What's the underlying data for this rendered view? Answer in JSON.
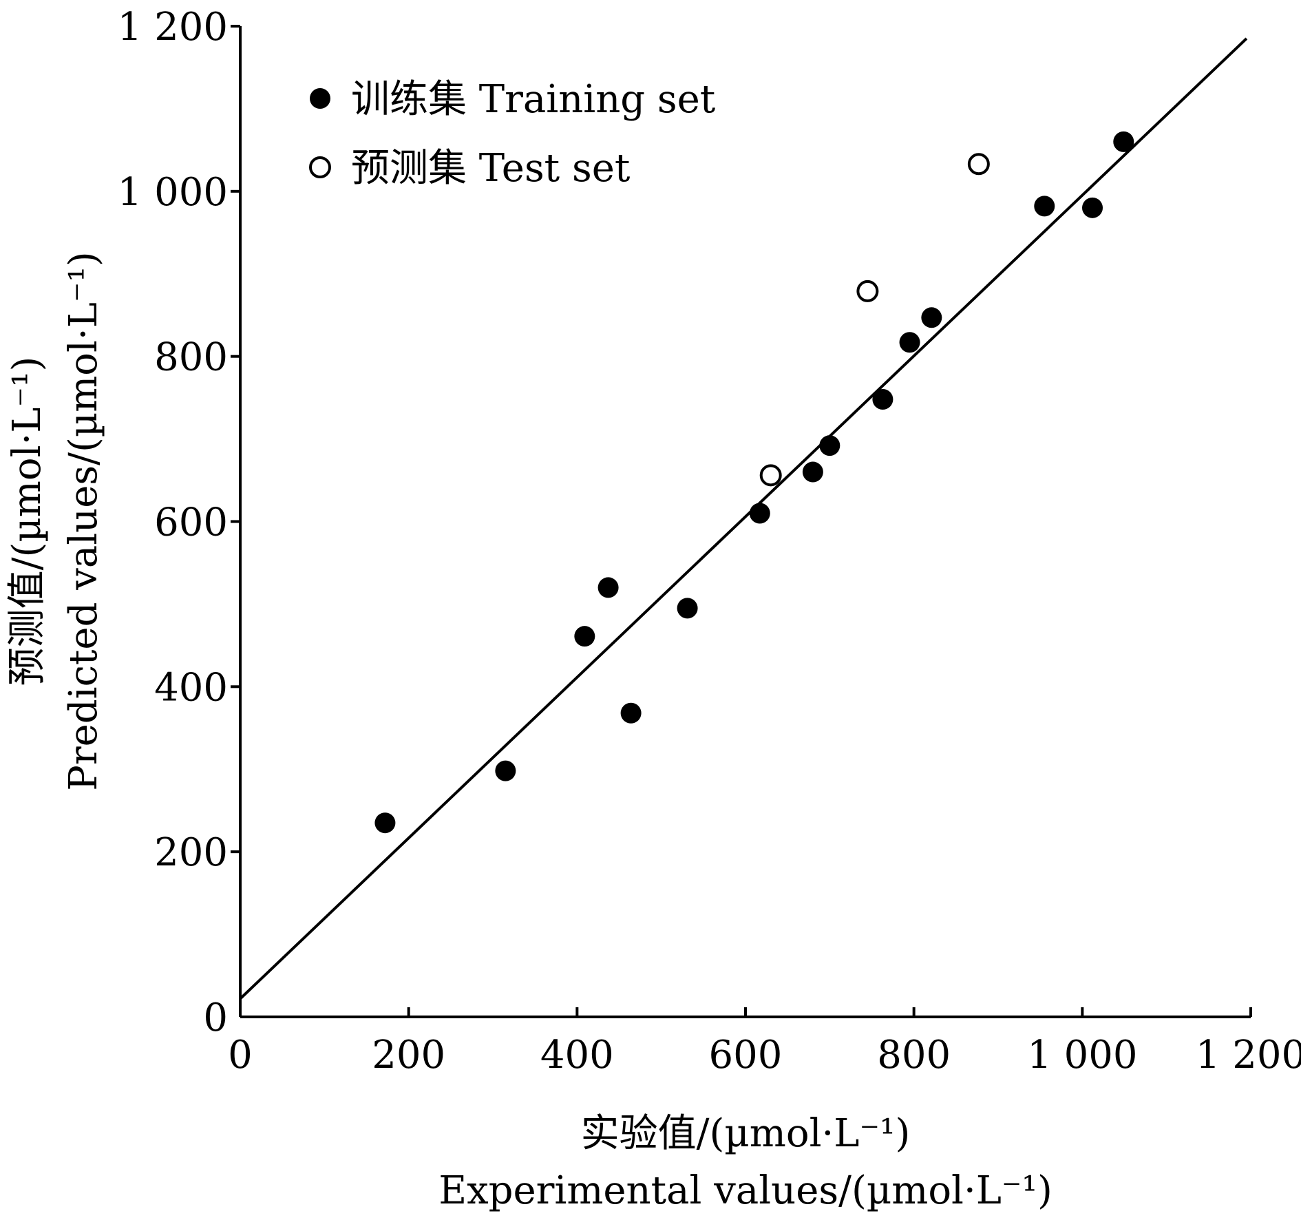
{
  "chart_data": {
    "type": "scatter",
    "xlabel_cn": "实验值/(µmol·L⁻¹)",
    "xlabel_en": "Experimental values/(µmol·L⁻¹)",
    "ylabel_cn": "预测值/(µmol·L⁻¹)",
    "ylabel_en": "Predicted values/(µmol·L⁻¹)",
    "xlim": [
      0,
      1200
    ],
    "ylim": [
      0,
      1200
    ],
    "x_ticks": [
      "0",
      "200",
      "400",
      "600",
      "800",
      "1 000",
      "1 200"
    ],
    "y_ticks": [
      "0",
      "200",
      "400",
      "600",
      "800",
      "1 000",
      "1 200"
    ],
    "legend_position": "top-left",
    "grid": false,
    "series": [
      {
        "name": "训练集 Training set",
        "marker": "filled-circle",
        "color": "#000000",
        "points": [
          [
            172,
            235
          ],
          [
            315,
            298
          ],
          [
            409,
            461
          ],
          [
            437,
            520
          ],
          [
            464,
            368
          ],
          [
            531,
            495
          ],
          [
            617,
            610
          ],
          [
            680,
            660
          ],
          [
            700,
            692
          ],
          [
            763,
            748
          ],
          [
            795,
            817
          ],
          [
            821,
            847
          ],
          [
            955,
            982
          ],
          [
            1012,
            980
          ],
          [
            1049,
            1060
          ]
        ]
      },
      {
        "name": "预测集 Test set",
        "marker": "open-circle",
        "color": "#000000",
        "points": [
          [
            630,
            656
          ],
          [
            745,
            879
          ],
          [
            877,
            1033
          ]
        ]
      }
    ],
    "fit_line": {
      "from": [
        0,
        22
      ],
      "to": [
        1195,
        1185
      ]
    }
  }
}
